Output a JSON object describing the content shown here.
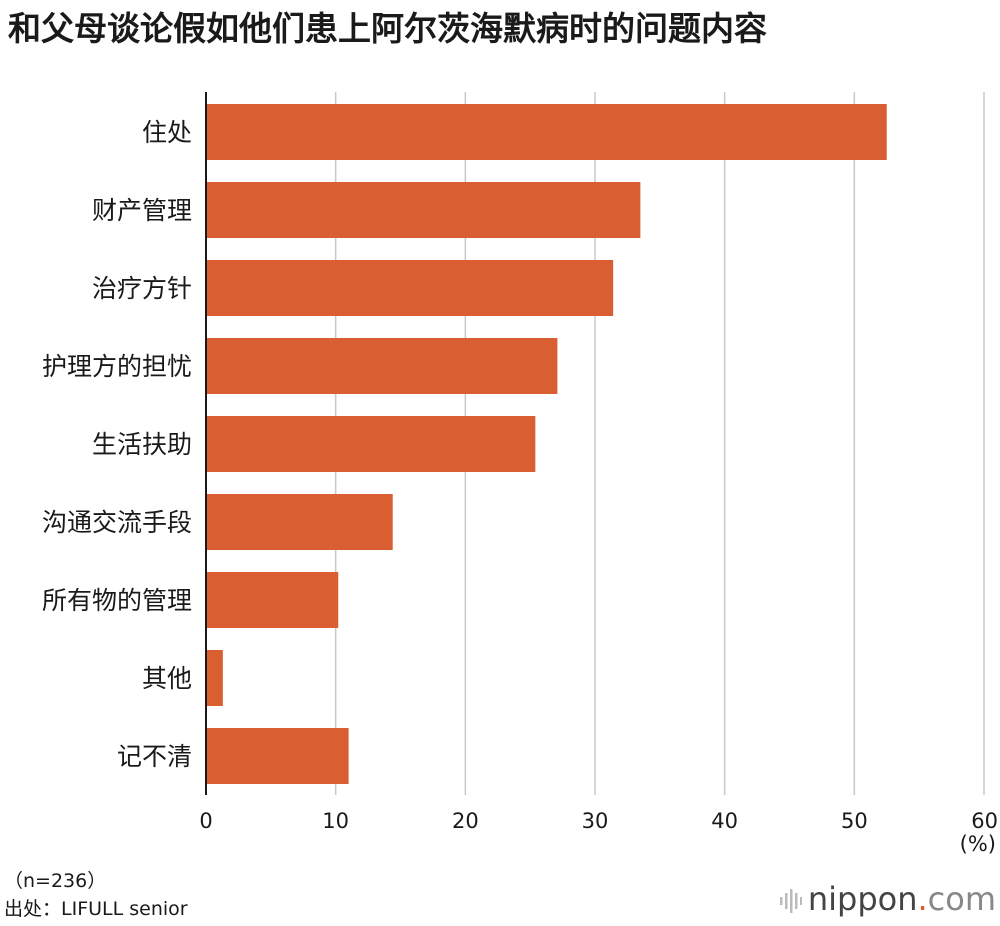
{
  "chart_data": {
    "type": "bar",
    "orientation": "horizontal",
    "title": "和父母谈论假如他们患上阿尔茨海默病时的问题内容",
    "categories": [
      "住处",
      "财产管理",
      "治疗方针",
      "护理方的担忧",
      "生活扶助",
      "沟通交流手段",
      "所有物的管理",
      "其他",
      "记不清"
    ],
    "values": [
      52.5,
      33.5,
      31.4,
      27.1,
      25.4,
      14.4,
      10.2,
      1.3,
      11.0
    ],
    "xlim": [
      0,
      60
    ],
    "xticks": [
      0,
      10,
      20,
      30,
      40,
      50,
      60
    ],
    "xunit": "(%)",
    "grid": true,
    "bar_color": "#d95f33"
  },
  "footnote": {
    "sample": "（n=236）",
    "source": "出处：LIFULL senior"
  },
  "brand": {
    "name": "nippon",
    "dot": ".",
    "suffix": "com"
  }
}
